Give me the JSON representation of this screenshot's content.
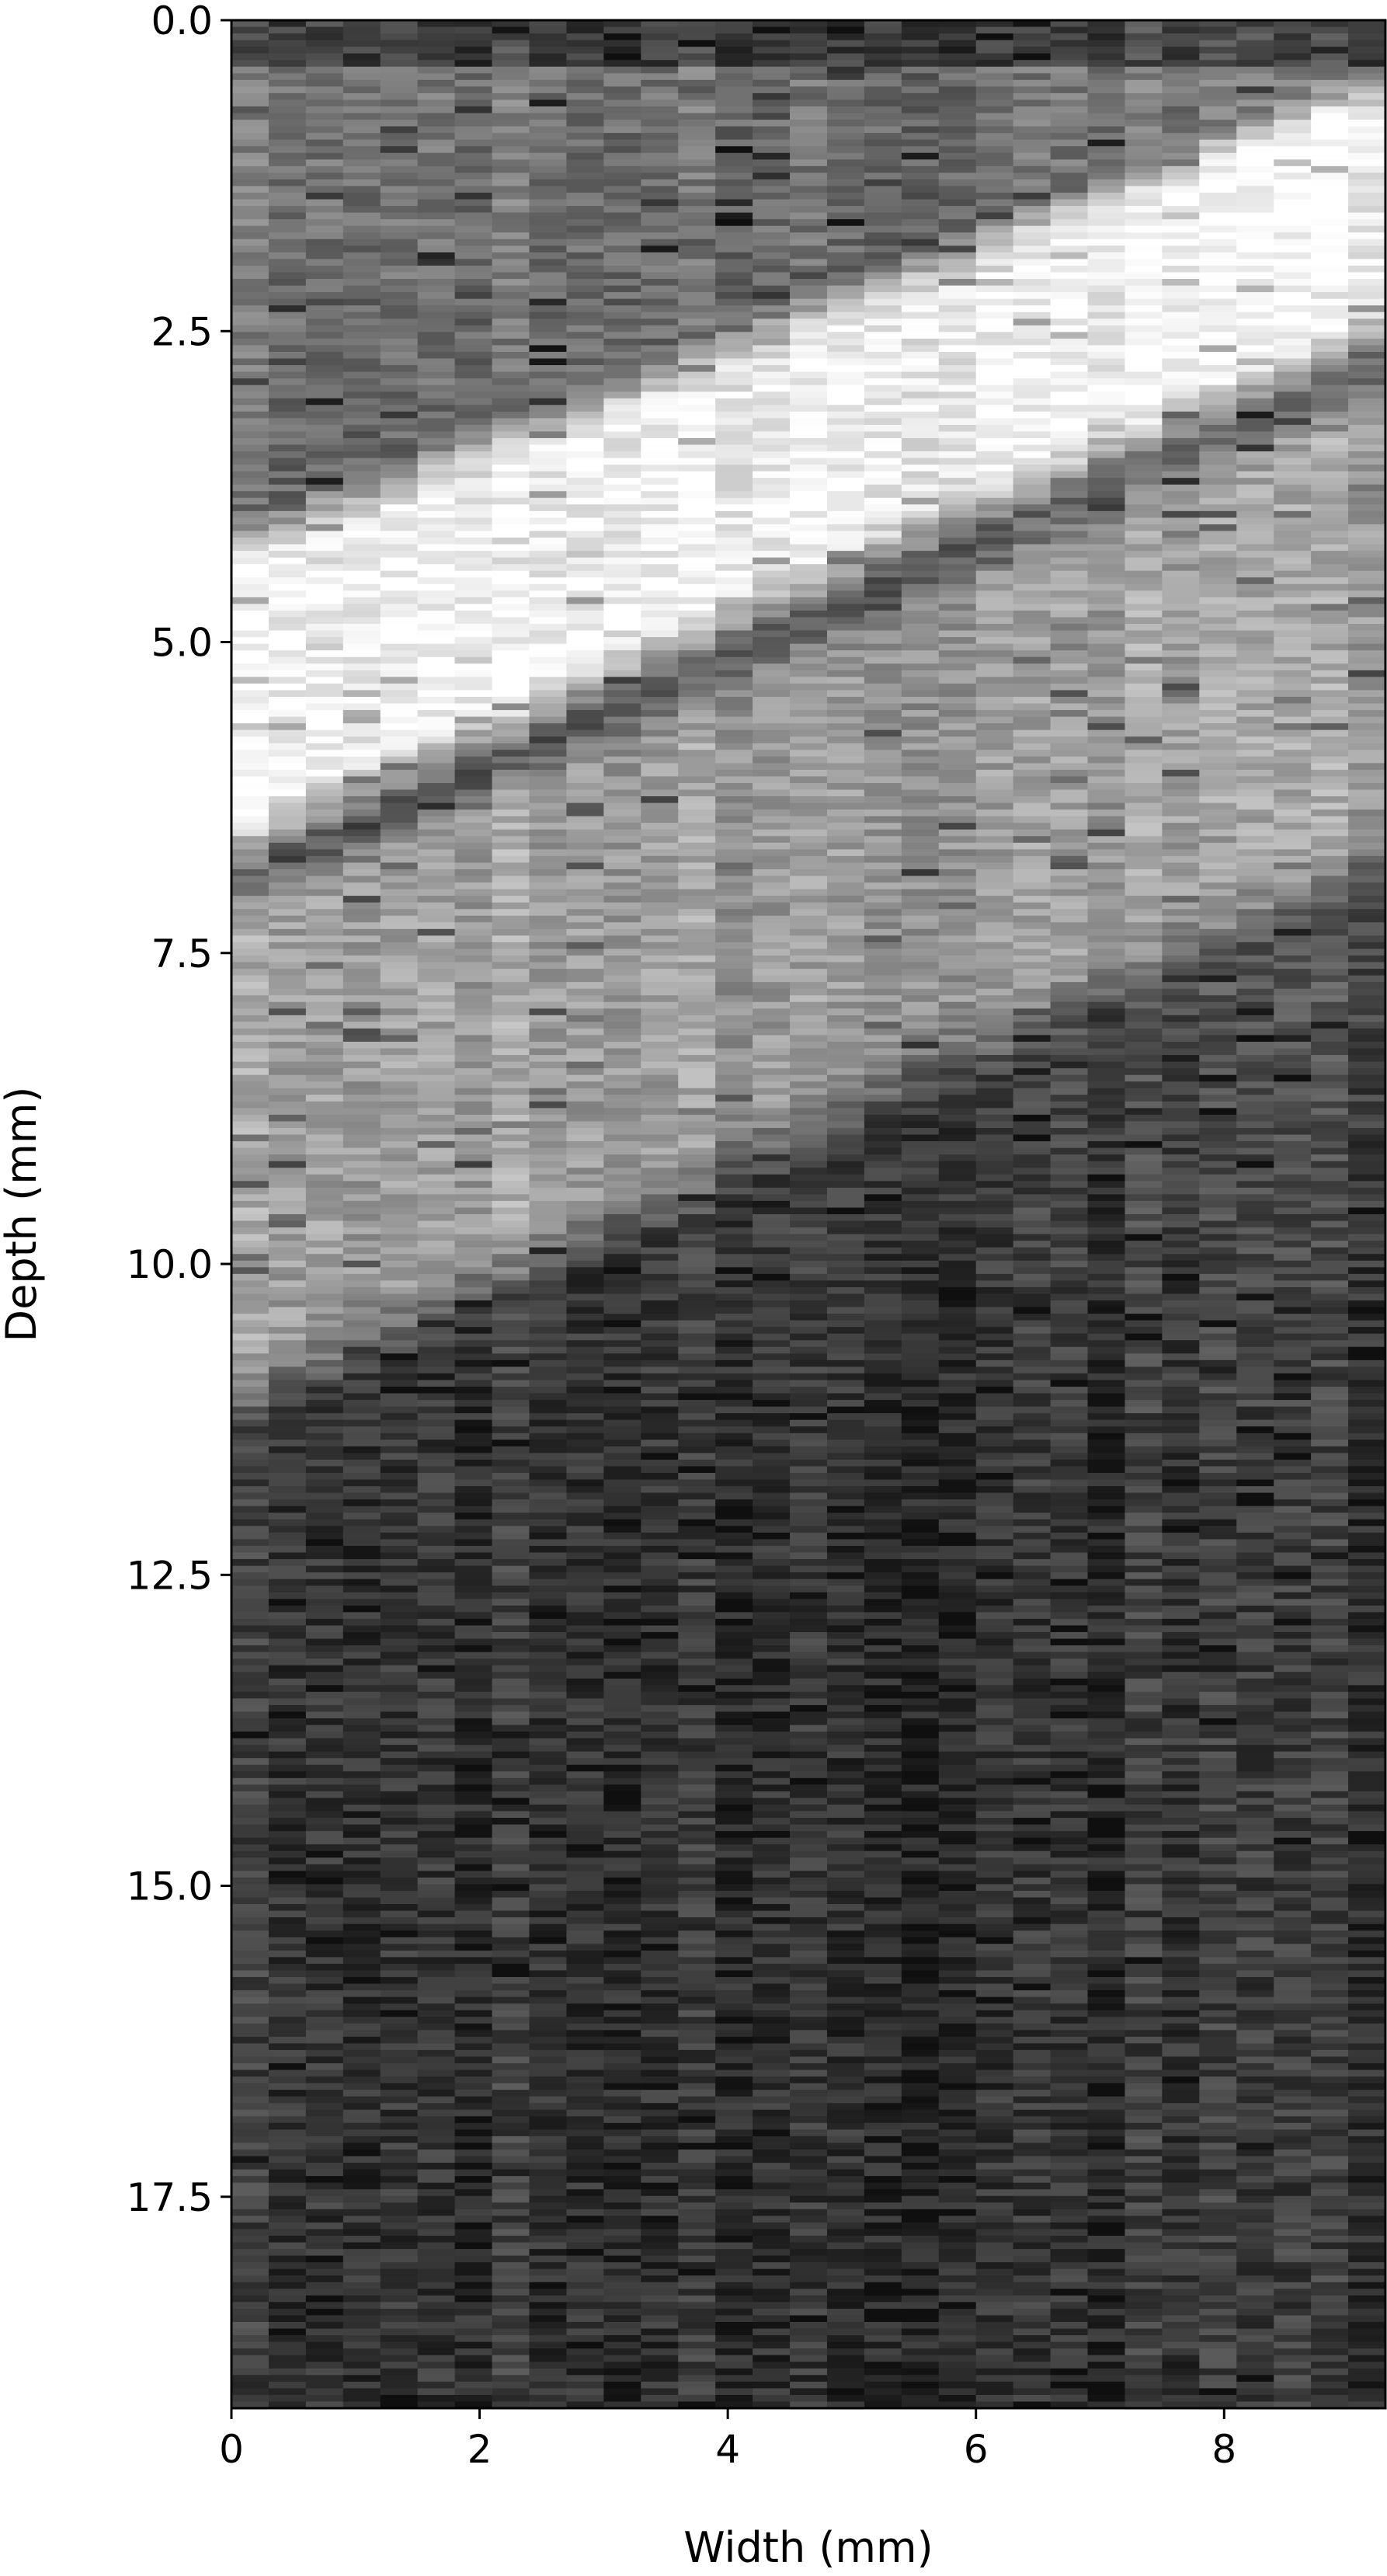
{
  "chart_data": {
    "type": "heatmap",
    "title": "",
    "xlabel": "Width (mm)",
    "ylabel": "Depth (mm)",
    "xlim": [
      0,
      9.3
    ],
    "ylim": [
      19.2,
      0
    ],
    "y_inverted": true,
    "colormap": "gray",
    "grid": false,
    "legend": "none",
    "x_ticks": [
      {
        "value": 0,
        "label": "0"
      },
      {
        "value": 2,
        "label": "2"
      },
      {
        "value": 4,
        "label": "4"
      },
      {
        "value": 6,
        "label": "6"
      },
      {
        "value": 8,
        "label": "8"
      }
    ],
    "y_ticks": [
      {
        "value": 0.0,
        "label": "0.0"
      },
      {
        "value": 2.5,
        "label": "2.5"
      },
      {
        "value": 5.0,
        "label": "5.0"
      },
      {
        "value": 7.5,
        "label": "7.5"
      },
      {
        "value": 10.0,
        "label": "10.0"
      },
      {
        "value": 12.5,
        "label": "12.5"
      },
      {
        "value": 15.0,
        "label": "15.0"
      },
      {
        "value": 17.5,
        "label": "17.5"
      }
    ],
    "n_columns": 31,
    "features": [
      {
        "kind": "bright-band",
        "x": [
          0,
          9.3
        ],
        "depth_top": [
          4.2,
          0.4
        ],
        "depth_bottom": [
          6.8,
          2.6
        ],
        "intensity": 0.95
      },
      {
        "kind": "diffuse-band",
        "x": [
          0,
          9.3
        ],
        "depth_top": [
          6.8,
          2.6
        ],
        "depth_bottom": [
          11.4,
          7.0
        ],
        "intensity": 0.62
      },
      {
        "kind": "background",
        "depth_range": [
          0,
          19.2
        ],
        "intensity_top": 0.45,
        "intensity_bottom": 0.2
      }
    ]
  }
}
